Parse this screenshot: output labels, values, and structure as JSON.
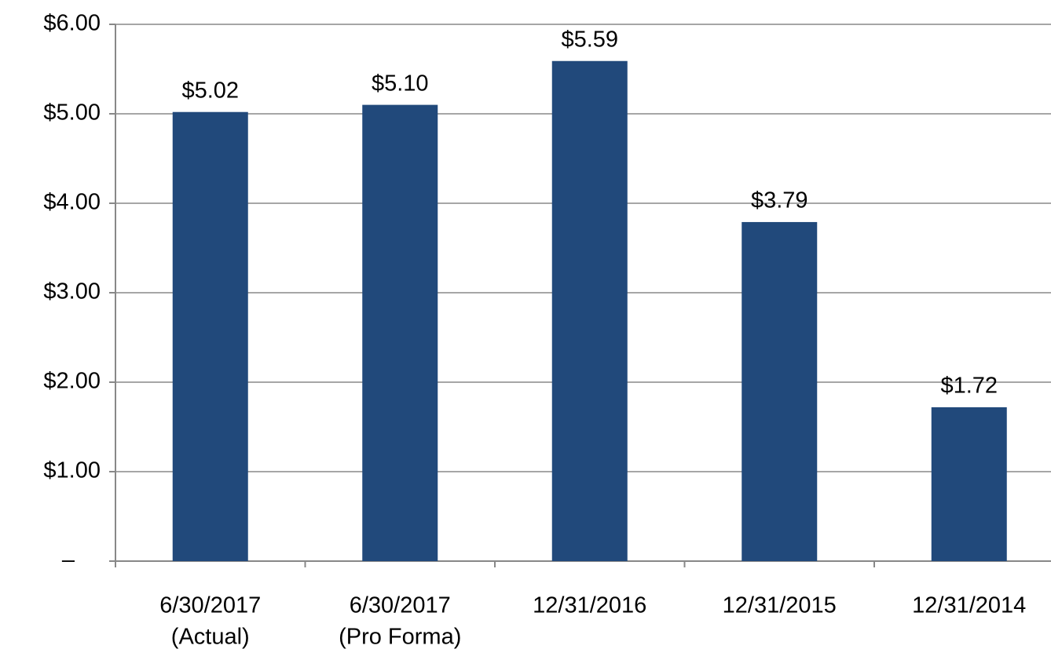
{
  "chart_data": {
    "type": "bar",
    "categories": [
      [
        "6/30/2017",
        "(Actual)"
      ],
      [
        "6/30/2017",
        "(Pro Forma)"
      ],
      [
        "12/31/2016"
      ],
      [
        "12/31/2015"
      ],
      [
        "12/31/2014"
      ]
    ],
    "values": [
      5.02,
      5.1,
      5.59,
      3.79,
      1.72
    ],
    "value_labels": [
      "$5.02",
      "$5.10",
      "$5.59",
      "$3.79",
      "$1.72"
    ],
    "color": "#21497b",
    "ylim": [
      0,
      6
    ],
    "yticks": [
      {
        "value": 0,
        "label": "–"
      },
      {
        "value": 1,
        "label": "$1.00"
      },
      {
        "value": 2,
        "label": "$2.00"
      },
      {
        "value": 3,
        "label": "$3.00"
      },
      {
        "value": 4,
        "label": "$4.00"
      },
      {
        "value": 5,
        "label": "$5.00"
      },
      {
        "value": 6,
        "label": "$6.00"
      }
    ],
    "grid": true
  }
}
